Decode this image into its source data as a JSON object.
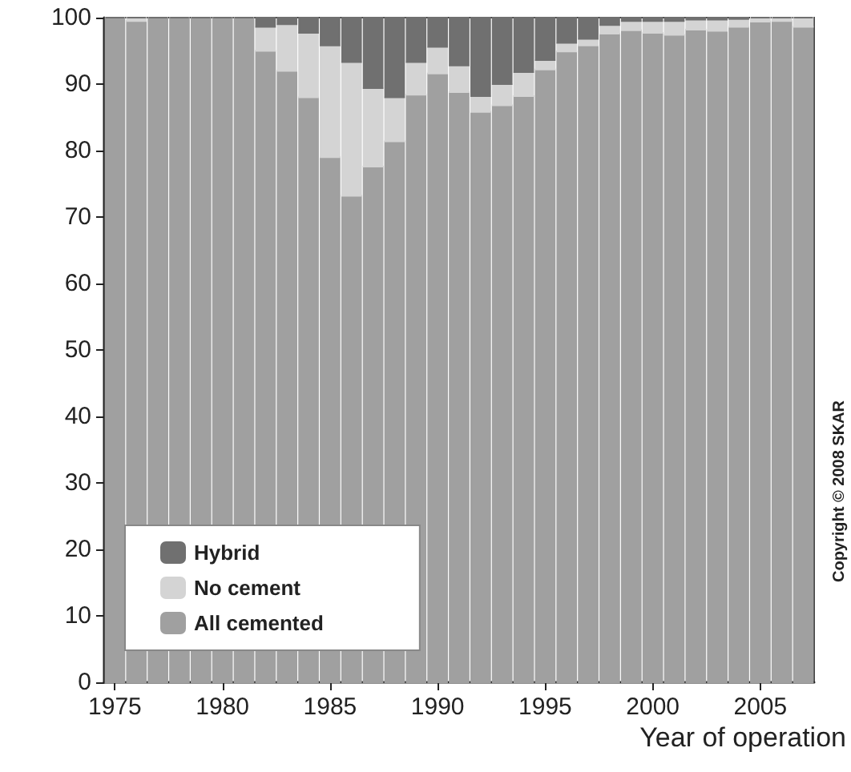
{
  "chart_data": {
    "type": "bar",
    "stacked": true,
    "xlabel": "Year of operation",
    "x": [
      1975,
      1976,
      1977,
      1978,
      1979,
      1980,
      1981,
      1982,
      1983,
      1984,
      1985,
      1986,
      1987,
      1988,
      1989,
      1990,
      1991,
      1992,
      1993,
      1994,
      1995,
      1996,
      1997,
      1998,
      1999,
      2000,
      2001,
      2002,
      2003,
      2004,
      2005,
      2006,
      2007
    ],
    "series": [
      {
        "name": "All cemented",
        "color": "#a0a0a0",
        "values": [
          100,
          99.5,
          100,
          100,
          100,
          100,
          100,
          95,
          92,
          88,
          79,
          73.2,
          77.6,
          81.4,
          88.4,
          91.6,
          88.8,
          85.8,
          86.8,
          88.2,
          92.2,
          94.9,
          95.8,
          97.6,
          98.1,
          97.7,
          97.4,
          98.2,
          98,
          98.6,
          99.4,
          99.5,
          98.6
        ]
      },
      {
        "name": "No cement",
        "color": "#d4d4d4",
        "values": [
          0,
          0.5,
          0,
          0,
          0,
          0,
          0,
          3.6,
          7,
          9.7,
          16.8,
          20.1,
          11.8,
          6.6,
          4.9,
          4,
          4,
          2.4,
          3.2,
          3.6,
          1.4,
          1.3,
          1,
          1.3,
          1.4,
          1.8,
          2.1,
          1.5,
          1.7,
          1.2,
          0.6,
          0.5,
          1.4
        ]
      },
      {
        "name": "Hybrid",
        "color": "#707070",
        "values": [
          0,
          0,
          0,
          0,
          0,
          0,
          0,
          1.4,
          1,
          2.3,
          4.2,
          6.7,
          10.6,
          12,
          6.7,
          4.4,
          7.2,
          11.8,
          10,
          8.2,
          6.4,
          3.8,
          3.2,
          1.1,
          0.5,
          0.5,
          0.5,
          0.3,
          0.3,
          0.2,
          0,
          0,
          0
        ]
      }
    ],
    "xlim": [
      1974.5,
      2007.5
    ],
    "xticks": [
      1975,
      1980,
      1985,
      1990,
      1995,
      2000,
      2005
    ],
    "ylim": [
      0,
      100
    ],
    "yticks": [
      0,
      10,
      20,
      30,
      40,
      50,
      60,
      70,
      80,
      90,
      100
    ],
    "grid": false,
    "legend": "bottom left",
    "annotations": [
      "Copyright © 2008 SKAR"
    ]
  }
}
